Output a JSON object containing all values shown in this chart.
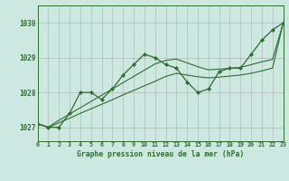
{
  "bg_color": "#cce8e0",
  "grid_color": "#b0b0b0",
  "line_color": "#2d6e2d",
  "marker_color": "#2d6e2d",
  "xlabel": "Graphe pression niveau de la mer (hPa)",
  "xlim": [
    0,
    23
  ],
  "ylim": [
    1026.6,
    1030.5
  ],
  "yticks": [
    1027,
    1028,
    1029,
    1030
  ],
  "xticks": [
    0,
    1,
    2,
    3,
    4,
    5,
    6,
    7,
    8,
    9,
    10,
    11,
    12,
    13,
    14,
    15,
    16,
    17,
    18,
    19,
    20,
    21,
    22,
    23
  ],
  "y_main": [
    1027.1,
    1027.0,
    1027.0,
    1027.4,
    1028.0,
    1028.0,
    1027.8,
    1028.1,
    1028.5,
    1028.8,
    1029.1,
    1029.0,
    1028.8,
    1028.7,
    1028.3,
    1028.0,
    1028.1,
    1028.6,
    1028.7,
    1028.7,
    1029.1,
    1029.5,
    1029.8,
    1030.0
  ],
  "y_trend1": [
    1027.1,
    1027.0,
    1027.13,
    1027.26,
    1027.4,
    1027.53,
    1027.66,
    1027.79,
    1027.93,
    1028.06,
    1028.19,
    1028.32,
    1028.46,
    1028.55,
    1028.5,
    1028.45,
    1028.42,
    1028.44,
    1028.47,
    1028.5,
    1028.55,
    1028.62,
    1028.7,
    1030.0
  ],
  "y_trend2": [
    1027.1,
    1027.0,
    1027.2,
    1027.38,
    1027.56,
    1027.74,
    1027.92,
    1028.1,
    1028.28,
    1028.46,
    1028.64,
    1028.82,
    1028.92,
    1028.96,
    1028.85,
    1028.74,
    1028.65,
    1028.67,
    1028.69,
    1028.72,
    1028.8,
    1028.88,
    1028.95,
    1030.0
  ]
}
